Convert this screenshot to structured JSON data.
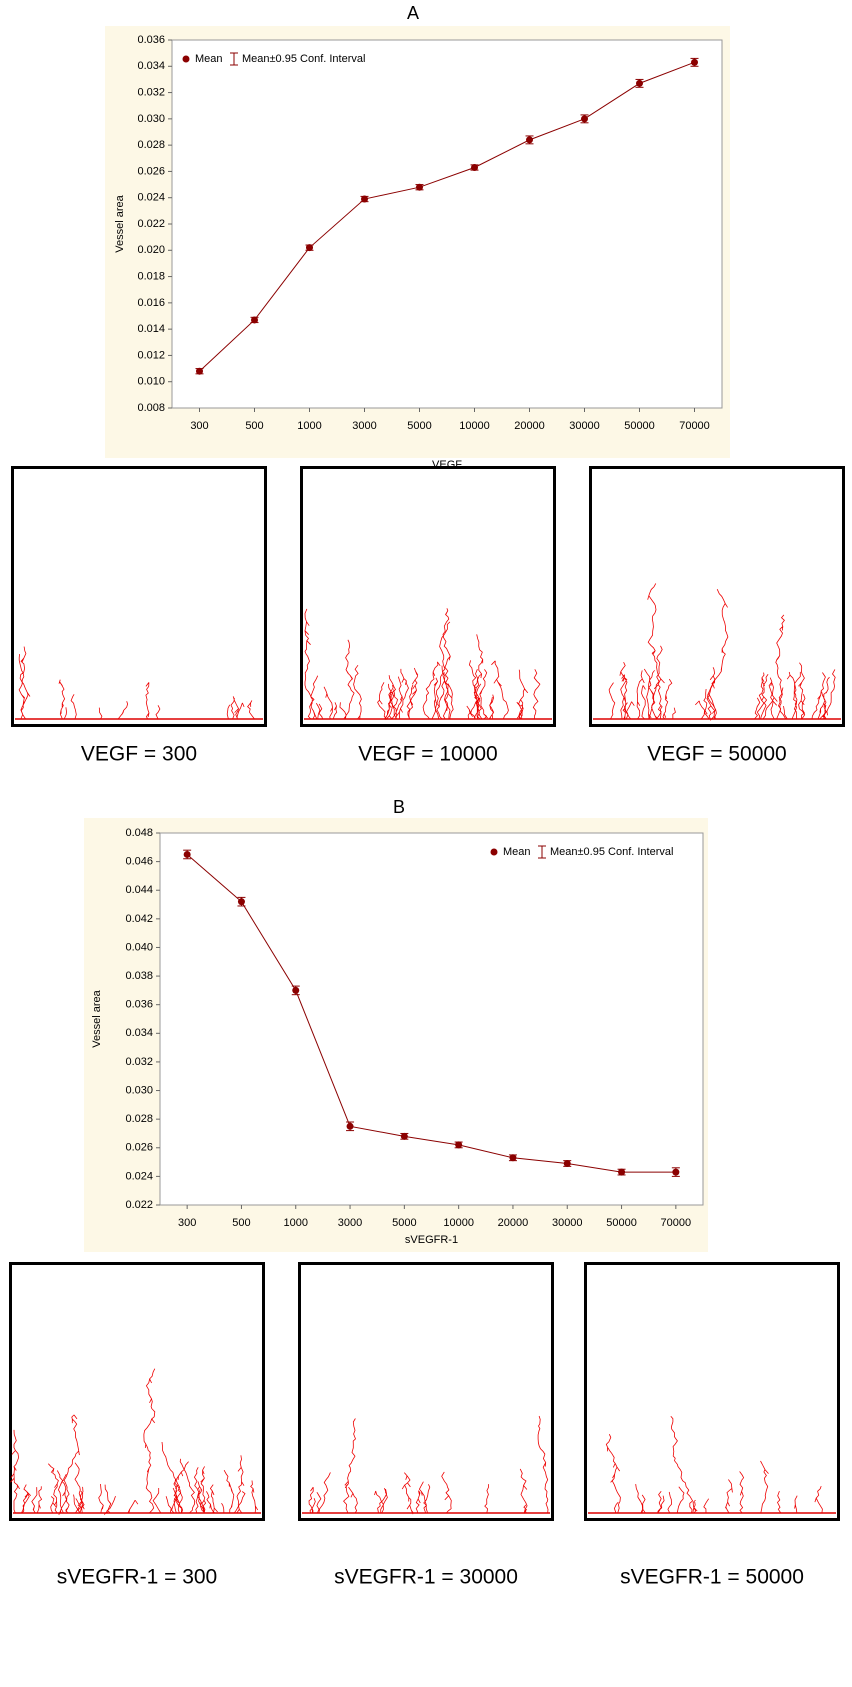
{
  "chart_data": [
    {
      "type": "line",
      "label": "A",
      "x_label": "VEGF",
      "y_label": "Vessel area",
      "legend": "top-left",
      "categories": [
        "300",
        "500",
        "1000",
        "3000",
        "5000",
        "10000",
        "20000",
        "30000",
        "50000",
        "70000"
      ],
      "series": [
        {
          "name": "Mean",
          "error_name": "Mean±0.95 Conf. Interval",
          "color": "#8b0000",
          "values": [
            0.0108,
            0.0147,
            0.0202,
            0.0239,
            0.0248,
            0.0263,
            0.0284,
            0.03,
            0.0327,
            0.0343
          ],
          "errors": [
            0.0002,
            0.0002,
            0.0002,
            0.0002,
            0.0002,
            0.0002,
            0.0003,
            0.0003,
            0.0003,
            0.0003
          ]
        }
      ],
      "ylim": [
        0.008,
        0.036
      ],
      "yticks": [
        0.008,
        {
          "value": 0.01,
          "label": "0.010"
        },
        0.012,
        0.014,
        0.016,
        0.018,
        {
          "value": 0.02,
          "label": "0.020"
        },
        0.022,
        0.024,
        0.026,
        0.028,
        {
          "value": 0.03,
          "label": "0.030"
        },
        0.032,
        0.034,
        0.036
      ],
      "image_captions": [
        "VEGF = 300",
        "VEGF = 10000",
        "VEGF = 50000"
      ]
    },
    {
      "type": "line",
      "label": "B",
      "x_label": "sVEGFR-1",
      "y_label": "Vessel area",
      "legend": "top-right",
      "categories": [
        "300",
        "500",
        "1000",
        "3000",
        "5000",
        "10000",
        "20000",
        "30000",
        "50000",
        "70000"
      ],
      "series": [
        {
          "name": "Mean",
          "error_name": "Mean±0.95 Conf. Interval",
          "color": "#8b0000",
          "values": [
            0.0465,
            0.0432,
            0.037,
            0.0275,
            0.0268,
            0.0262,
            0.0253,
            0.0249,
            0.0243,
            0.0243
          ],
          "errors": [
            0.0003,
            0.0003,
            0.0003,
            0.0003,
            0.0002,
            0.0002,
            0.0002,
            0.0002,
            0.0002,
            0.0003
          ]
        }
      ],
      "ylim": [
        0.022,
        0.048
      ],
      "yticks": [
        0.022,
        0.024,
        0.026,
        0.028,
        {
          "value": 0.03,
          "label": "0.030"
        },
        0.032,
        0.034,
        0.036,
        0.038,
        {
          "value": 0.04,
          "label": "0.040"
        },
        0.042,
        0.044,
        0.046,
        0.048
      ],
      "image_captions": [
        "sVEGFR-1 = 300",
        "sVEGFR-1 = 30000",
        "sVEGFR-1 = 50000"
      ]
    }
  ]
}
